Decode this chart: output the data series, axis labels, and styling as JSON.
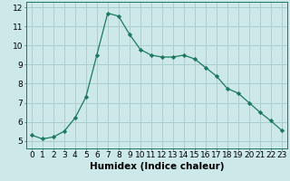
{
  "x": [
    0,
    1,
    2,
    3,
    4,
    5,
    6,
    7,
    8,
    9,
    10,
    11,
    12,
    13,
    14,
    15,
    16,
    17,
    18,
    19,
    20,
    21,
    22,
    23
  ],
  "y": [
    5.3,
    5.1,
    5.2,
    5.5,
    6.2,
    7.3,
    9.5,
    11.7,
    11.55,
    10.6,
    9.8,
    9.5,
    9.4,
    9.4,
    9.5,
    9.3,
    8.85,
    8.4,
    7.75,
    7.5,
    7.0,
    6.5,
    6.05,
    5.55
  ],
  "line_color": "#1a7a5e",
  "marker": "D",
  "marker_size": 2.2,
  "bg_color": "#cce8e8",
  "grid_color": "#aacece",
  "xlabel": "Humidex (Indice chaleur)",
  "ylim": [
    4.6,
    12.3
  ],
  "xlim": [
    -0.5,
    23.5
  ],
  "yticks": [
    5,
    6,
    7,
    8,
    9,
    10,
    11,
    12
  ],
  "xticks": [
    0,
    1,
    2,
    3,
    4,
    5,
    6,
    7,
    8,
    9,
    10,
    11,
    12,
    13,
    14,
    15,
    16,
    17,
    18,
    19,
    20,
    21,
    22,
    23
  ],
  "xlabel_fontsize": 7.5,
  "tick_fontsize": 6.5
}
